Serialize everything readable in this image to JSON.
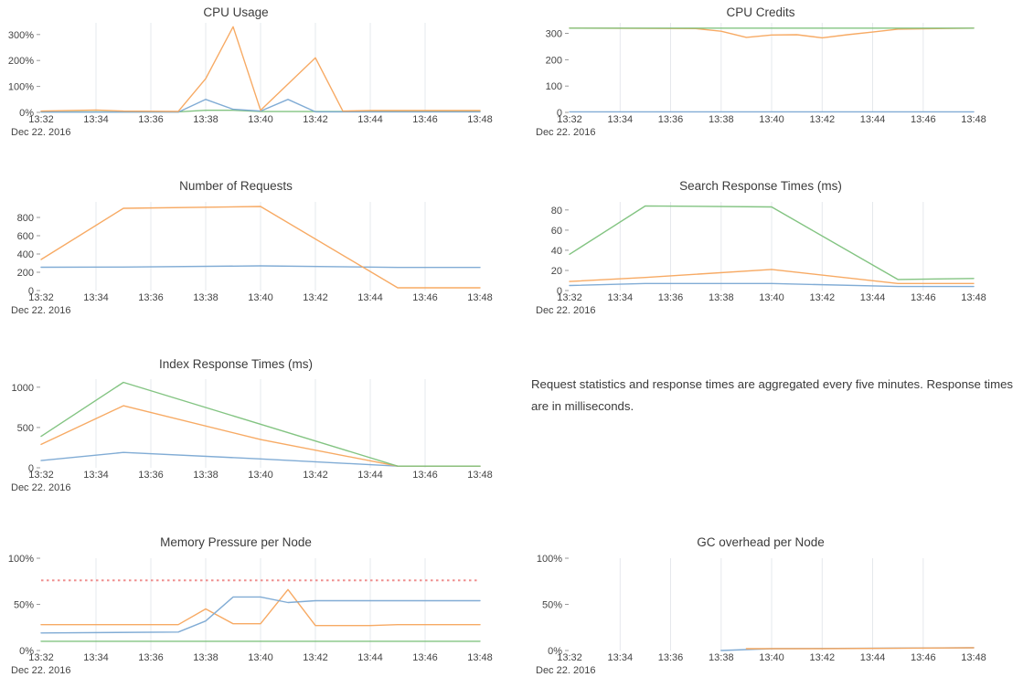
{
  "page": {
    "background": "#ffffff"
  },
  "notes": {
    "text": "Request statistics and response times are aggregated every five minutes. Response times are in milliseconds."
  },
  "palette": {
    "blue": "#7aa8d3",
    "orange": "#f7a55c",
    "green": "#7cc17b",
    "red": "#ef8f8f",
    "grid": "#e5e8ec",
    "tick_mark": "#999999",
    "axis_text": "#444444",
    "title_text": "#3c3c3c"
  },
  "x_axis": {
    "tick_labels": [
      "13:32",
      "13:34",
      "13:36",
      "13:38",
      "13:40",
      "13:42",
      "13:44",
      "13:46",
      "13:48"
    ],
    "date_label": "Dec 22. 2016",
    "minutes_range": [
      0,
      16
    ]
  },
  "chart_data": [
    {
      "id": "cpu-usage",
      "type": "line",
      "title": "CPU Usage",
      "row": 0,
      "col": 0,
      "ylim": [
        0,
        345
      ],
      "grid": true,
      "legend": "none",
      "yticks": [
        {
          "v": 0,
          "label": "0%"
        },
        {
          "v": 100,
          "label": "100%"
        },
        {
          "v": 200,
          "label": "200%"
        },
        {
          "v": 300,
          "label": "300%"
        }
      ],
      "series": [
        {
          "name": "green",
          "color": "green",
          "x": [
            0,
            5,
            6,
            7,
            8,
            16
          ],
          "y": [
            2,
            2,
            8,
            8,
            3,
            3
          ]
        },
        {
          "name": "blue",
          "color": "blue",
          "x": [
            0,
            5,
            6,
            7,
            8,
            9,
            10,
            16
          ],
          "y": [
            1,
            1,
            50,
            12,
            5,
            50,
            2,
            2
          ]
        },
        {
          "name": "orange",
          "color": "orange",
          "x": [
            0,
            2,
            3,
            5,
            6,
            7,
            8,
            10,
            11,
            12,
            16
          ],
          "y": [
            5,
            9,
            5,
            4,
            130,
            330,
            8,
            210,
            5,
            7,
            7
          ]
        }
      ]
    },
    {
      "id": "cpu-credits",
      "type": "line",
      "title": "CPU Credits",
      "row": 0,
      "col": 1,
      "ylim": [
        0,
        340
      ],
      "grid": true,
      "legend": "none",
      "yticks": [
        {
          "v": 0,
          "label": "0"
        },
        {
          "v": 100,
          "label": "100"
        },
        {
          "v": 200,
          "label": "200"
        },
        {
          "v": 300,
          "label": "300"
        }
      ],
      "series": [
        {
          "name": "blue",
          "color": "blue",
          "x": [
            0,
            16
          ],
          "y": [
            2,
            2
          ]
        },
        {
          "name": "orange",
          "color": "orange",
          "x": [
            0,
            5,
            6,
            7,
            8,
            9,
            10,
            11,
            12,
            13,
            16
          ],
          "y": [
            320,
            318,
            308,
            285,
            294,
            295,
            283,
            295,
            305,
            316,
            320
          ]
        },
        {
          "name": "green",
          "color": "green",
          "x": [
            0,
            16
          ],
          "y": [
            320,
            320
          ]
        }
      ]
    },
    {
      "id": "number-of-requests",
      "type": "line",
      "title": "Number of Requests",
      "row": 1,
      "col": 0,
      "ylim": [
        0,
        970
      ],
      "grid": true,
      "legend": "none",
      "yticks": [
        {
          "v": 0,
          "label": "0"
        },
        {
          "v": 200,
          "label": "200"
        },
        {
          "v": 400,
          "label": "400"
        },
        {
          "v": 600,
          "label": "600"
        },
        {
          "v": 800,
          "label": "800"
        }
      ],
      "series": [
        {
          "name": "blue",
          "color": "blue",
          "x": [
            0,
            3,
            8,
            13,
            16
          ],
          "y": [
            255,
            257,
            270,
            253,
            253
          ]
        },
        {
          "name": "orange",
          "color": "orange",
          "x": [
            0,
            3,
            8,
            13,
            16
          ],
          "y": [
            340,
            900,
            920,
            30,
            30
          ]
        }
      ]
    },
    {
      "id": "search-response-times",
      "type": "line",
      "title": "Search Response Times (ms)",
      "row": 1,
      "col": 1,
      "ylim": [
        0,
        88
      ],
      "grid": true,
      "legend": "none",
      "yticks": [
        {
          "v": 0,
          "label": "0"
        },
        {
          "v": 20,
          "label": "20"
        },
        {
          "v": 40,
          "label": "40"
        },
        {
          "v": 60,
          "label": "60"
        },
        {
          "v": 80,
          "label": "80"
        }
      ],
      "series": [
        {
          "name": "blue",
          "color": "blue",
          "x": [
            0,
            3,
            8,
            13,
            16
          ],
          "y": [
            5,
            7,
            7,
            4,
            4
          ]
        },
        {
          "name": "orange",
          "color": "orange",
          "x": [
            0,
            3,
            8,
            13,
            16
          ],
          "y": [
            9,
            13,
            21,
            7,
            7
          ]
        },
        {
          "name": "green",
          "color": "green",
          "x": [
            0,
            3,
            8,
            13,
            16
          ],
          "y": [
            36,
            84,
            83,
            11,
            12
          ]
        }
      ]
    },
    {
      "id": "index-response-times",
      "type": "line",
      "title": "Index Response Times (ms)",
      "row": 2,
      "col": 0,
      "ylim": [
        0,
        1100
      ],
      "grid": true,
      "legend": "none",
      "yticks": [
        {
          "v": 0,
          "label": "0"
        },
        {
          "v": 500,
          "label": "500"
        },
        {
          "v": 1000,
          "label": "1000"
        }
      ],
      "series": [
        {
          "name": "blue",
          "color": "blue",
          "x": [
            0,
            3,
            8,
            13,
            16
          ],
          "y": [
            90,
            190,
            110,
            20,
            20
          ]
        },
        {
          "name": "orange",
          "color": "orange",
          "x": [
            0,
            3,
            8,
            13,
            16
          ],
          "y": [
            290,
            770,
            350,
            20,
            20
          ]
        },
        {
          "name": "green",
          "color": "green",
          "x": [
            0,
            3,
            13,
            16
          ],
          "y": [
            390,
            1060,
            20,
            20
          ]
        }
      ]
    },
    {
      "id": "memory-pressure",
      "type": "line",
      "title": "Memory Pressure per Node",
      "row": 3,
      "col": 0,
      "ylim": [
        0,
        100
      ],
      "grid": true,
      "legend": "none",
      "yticks": [
        {
          "v": 0,
          "label": "0%"
        },
        {
          "v": 50,
          "label": "50%"
        },
        {
          "v": 100,
          "label": "100%"
        }
      ],
      "threshold": {
        "value": 76,
        "color": "red",
        "style": "dotted"
      },
      "series": [
        {
          "name": "green",
          "color": "green",
          "x": [
            0,
            16
          ],
          "y": [
            10,
            10
          ]
        },
        {
          "name": "orange",
          "color": "orange",
          "x": [
            0,
            5,
            6,
            7,
            8,
            9,
            10,
            12,
            13,
            16
          ],
          "y": [
            28,
            28,
            45,
            29,
            29,
            66,
            27,
            27,
            28,
            28
          ]
        },
        {
          "name": "blue",
          "color": "blue",
          "x": [
            0,
            5,
            6,
            7,
            8,
            9,
            10,
            16
          ],
          "y": [
            19,
            20,
            32,
            58,
            58,
            52,
            54,
            54
          ]
        }
      ]
    },
    {
      "id": "gc-overhead",
      "type": "line",
      "title": "GC overhead per Node",
      "row": 3,
      "col": 1,
      "ylim": [
        0,
        100
      ],
      "grid": true,
      "legend": "none",
      "yticks": [
        {
          "v": 0,
          "label": "0%"
        },
        {
          "v": 50,
          "label": "50%"
        },
        {
          "v": 100,
          "label": "100%"
        }
      ],
      "series": [
        {
          "name": "blue",
          "color": "blue",
          "x": [
            6,
            8,
            16
          ],
          "y": [
            0,
            2,
            3
          ]
        },
        {
          "name": "orange",
          "color": "orange",
          "x": [
            7,
            10,
            16
          ],
          "y": [
            2,
            2,
            3
          ]
        }
      ]
    }
  ]
}
